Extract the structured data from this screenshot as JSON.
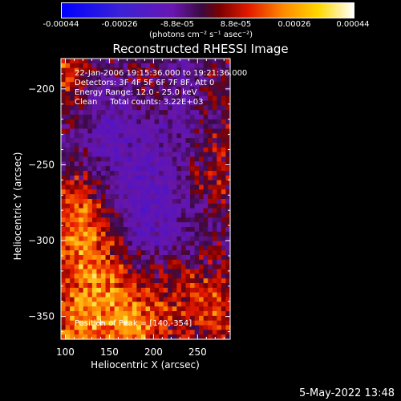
{
  "chart_data": {
    "type": "heatmap",
    "title": "Reconstructed RHESSI Image",
    "xlabel": "Heliocentric X (arcsec)",
    "ylabel": "Heliocentric Y (arcsec)",
    "xlim": [
      95,
      287
    ],
    "ylim": [
      -365,
      -180
    ],
    "x_ticks": [
      "100",
      "150",
      "200",
      "250"
    ],
    "x_tick_values": [
      100,
      150,
      200,
      250
    ],
    "y_ticks": [
      "-200",
      "-250",
      "-300",
      "-350"
    ],
    "y_tick_values": [
      -200,
      -250,
      -300,
      -350
    ],
    "colorbar": {
      "ticks": [
        "-0.00044",
        "-0.00026",
        "-8.8e-05",
        "8.8e-05",
        "0.00026",
        "0.00044"
      ],
      "tick_values": [
        -0.00044,
        -0.00026,
        -8.8e-05,
        8.8e-05,
        0.00026,
        0.00044
      ],
      "range": [
        -0.00044,
        0.00044
      ],
      "unit_label": "(photons cm⁻² s⁻¹ asec⁻²)",
      "colormap": [
        "#0000ff",
        "#5a0aa8",
        "#3a0050",
        "#ff0000",
        "#ff8c00",
        "#ffff60",
        "#ffffff"
      ]
    },
    "annotations": [
      "22-Jan-2006 19:15:36.000 to 19:21:36.000",
      "Detectors: 3F 4F 5F 6F 7F 8F, Att 0",
      "Energy Range: 12.0 - 25.0 keV",
      "Clean     Total counts: 3.22E+03"
    ],
    "peak_label": "Position of Peak = [140,-354]",
    "peak_position": [
      140,
      -354
    ],
    "grid": false
  },
  "footer": {
    "timestamp": "5-May-2022 13:48"
  }
}
